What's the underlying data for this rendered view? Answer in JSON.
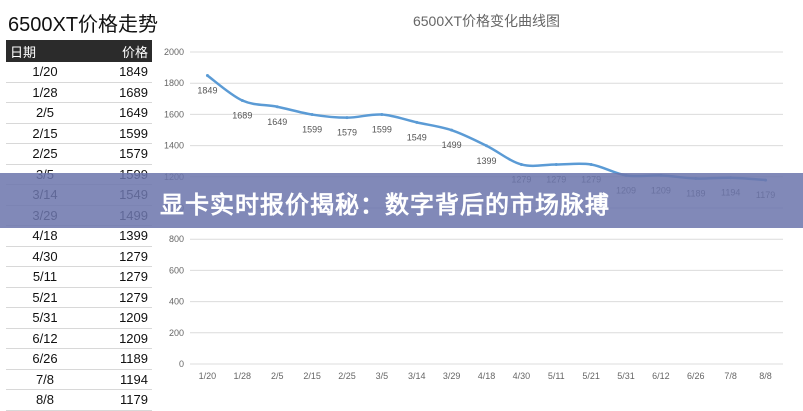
{
  "sheet": {
    "title": "6500XT价格走势",
    "headers": {
      "date": "日期",
      "price": "价格"
    }
  },
  "banner": {
    "text": "显卡实时报价揭秘：数字背后的市场脉搏"
  },
  "colors": {
    "line": "#5b9bd5",
    "banner": "#6c76ac",
    "header_bg": "#2b2b2b"
  },
  "chart_data": {
    "type": "line",
    "title": "6500XT价格变化曲线图",
    "categories": [
      "1/20",
      "1/28",
      "2/5",
      "2/15",
      "2/25",
      "3/5",
      "3/14",
      "3/29",
      "4/18",
      "4/30",
      "5/11",
      "5/21",
      "5/31",
      "6/12",
      "6/26",
      "7/8",
      "8/8"
    ],
    "values": [
      1849,
      1689,
      1649,
      1599,
      1579,
      1599,
      1549,
      1499,
      1399,
      1279,
      1279,
      1279,
      1209,
      1209,
      1189,
      1194,
      1179
    ],
    "yticks": [
      0,
      200,
      400,
      600,
      800,
      1000,
      1200,
      1400,
      1600,
      1800,
      2000
    ],
    "ylim": [
      0,
      2000
    ],
    "xlabel": "",
    "ylabel": "",
    "grid": true,
    "legend": "none",
    "smooth": true
  }
}
